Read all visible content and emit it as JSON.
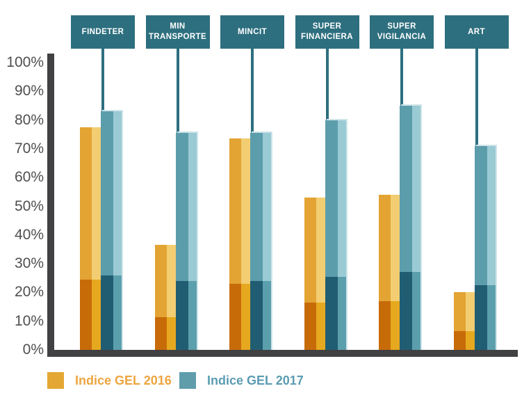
{
  "chart_data": {
    "type": "bar",
    "title": "",
    "xlabel": "",
    "ylabel": "",
    "categories": [
      "FINDETER",
      "MIN TRANSPORTE",
      "MINCIT",
      "SUPER FINANCIERA",
      "SUPER VIGILANCIA",
      "ART"
    ],
    "series": [
      {
        "name": "Indice GEL 2016",
        "values": [
          77.5,
          36.5,
          73.5,
          53,
          54,
          20
        ],
        "dark_segment_values": [
          24.5,
          11.5,
          23,
          16.5,
          17,
          6.5
        ]
      },
      {
        "name": "Indice GEL 2017",
        "values": [
          83,
          75.5,
          75.5,
          80,
          85,
          71
        ],
        "dark_segment_values": [
          26,
          24,
          24,
          25.5,
          27,
          22.5
        ]
      }
    ],
    "y_ticks": [
      "100%",
      "90%",
      "80%",
      "70%",
      "60%",
      "50%",
      "40%",
      "30%",
      "20%",
      "10%",
      "0%"
    ],
    "ylim": [
      0,
      100
    ],
    "grid": false,
    "legend_position": "bottom"
  },
  "colors": {
    "header_box": "#2d6f7f",
    "stem": "#2d6f7f",
    "axis": "#414042",
    "tick_label": "#4f4f4f",
    "gel2016": {
      "top_left": "#e3a433",
      "top_right": "#f2cd72",
      "bottom_left": "#c76b09",
      "bottom_right": "#e6a81f",
      "legend_swatch": "#e5a733",
      "legend_text": "#eda53f"
    },
    "gel2017": {
      "top_left": "#5c9dac",
      "top_right": "#9acad4",
      "bottom_left": "#215d72",
      "bottom_right": "#5b9fad",
      "ghost_edge": "#cfe4e9",
      "legend_swatch": "#5f9dab",
      "legend_text": "#5b9cb2"
    }
  },
  "legend": {
    "items": [
      {
        "label": "Indice GEL 2016"
      },
      {
        "label": "Indice GEL 2017"
      }
    ]
  }
}
